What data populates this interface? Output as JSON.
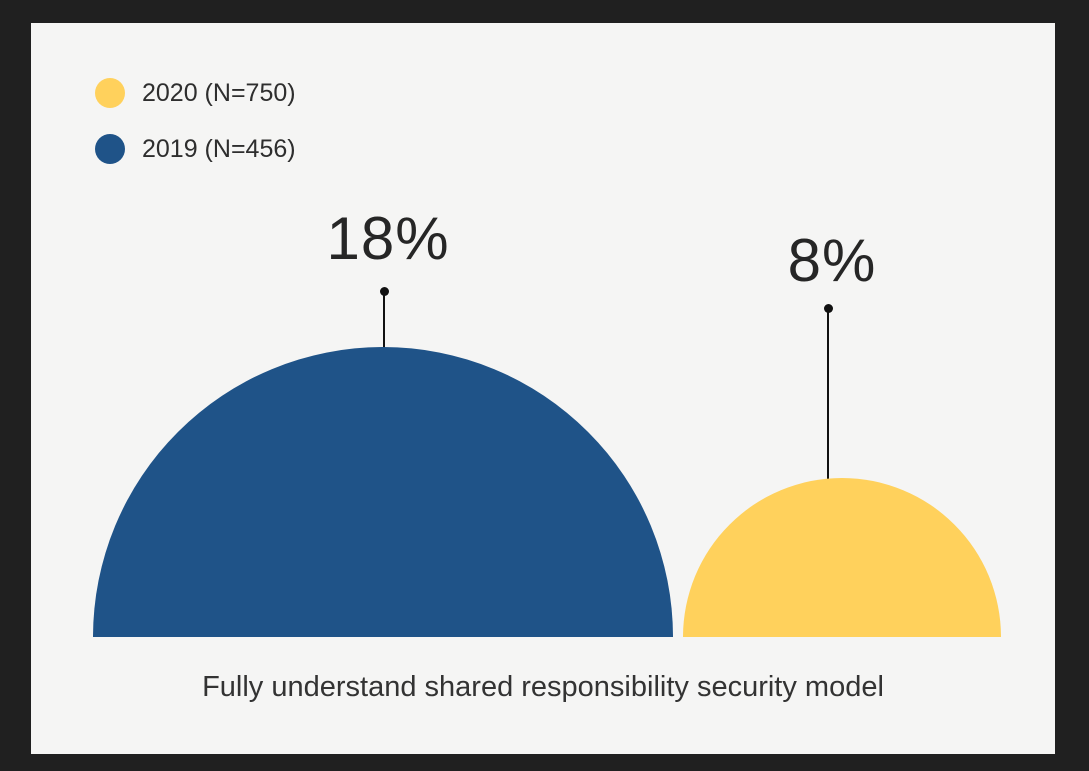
{
  "frame": {
    "background_color": "#202020",
    "card_background_color": "#F5F5F4"
  },
  "legend": {
    "position": "top-left",
    "items": [
      {
        "label": "2020 (N=750)",
        "color": "#FFD15C"
      },
      {
        "label": "2019 (N=456)",
        "color": "#1F5388"
      }
    ]
  },
  "chart_data": {
    "type": "bar",
    "variant": "proportional-semicircle-area",
    "title": "",
    "caption": "Fully understand shared responsibility security model",
    "categories": [
      "2019",
      "2020"
    ],
    "series": [
      {
        "name": "2019 (N=456)",
        "year": "2019",
        "sample_size": 456,
        "value": 18,
        "label": "18%",
        "color": "#1F5388"
      },
      {
        "name": "2020 (N=750)",
        "year": "2020",
        "sample_size": 750,
        "value": 8,
        "label": "8%",
        "color": "#FFD15C"
      }
    ],
    "legend_position": "top-left",
    "axes": "none",
    "grid": false,
    "pointer_color": "#111111",
    "text_color": "#2e2e2e"
  }
}
